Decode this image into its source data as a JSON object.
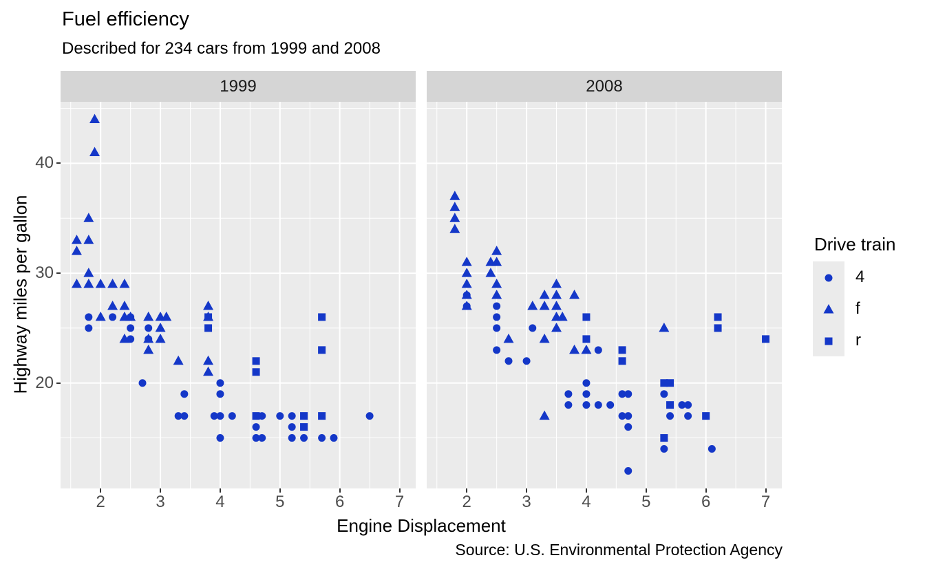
{
  "title": "Fuel efficiency",
  "subtitle": "Described for 234 cars from 1999 and 2008",
  "caption": "Source: U.S. Environmental Protection Agency",
  "x_axis": {
    "label": "Engine Displacement",
    "ticks": [
      2,
      3,
      4,
      5,
      6,
      7
    ],
    "minor": [
      1.5,
      2.5,
      3.5,
      4.5,
      5.5,
      6.5
    ],
    "domain": [
      1.33,
      7.27
    ]
  },
  "y_axis": {
    "label": "Highway miles per gallon",
    "ticks": [
      20,
      30,
      40
    ],
    "minor": [
      15,
      25,
      35,
      45
    ],
    "domain": [
      10.4,
      45.6
    ]
  },
  "legend": {
    "title": "Drive train",
    "items": [
      {
        "label": "4",
        "shape": "circle"
      },
      {
        "label": "f",
        "shape": "triangle"
      },
      {
        "label": "r",
        "shape": "square"
      }
    ]
  },
  "colors": {
    "point": "#1437C8",
    "panel": "#EBEBEB",
    "strip": "#D5D5D5",
    "grid": "#FFFFFF",
    "axis_text": "#4D4D4D",
    "strip_text": "#1A1A1A",
    "tick_mark": "#333333"
  },
  "chart_data": {
    "type": "scatter",
    "xlabel": "Engine Displacement",
    "ylabel": "Highway miles per gallon",
    "xlim": [
      1.33,
      7.27
    ],
    "ylim": [
      10.4,
      45.6
    ],
    "grid": "on",
    "legend_position": "right",
    "facets": [
      {
        "label": "1999",
        "series": [
          {
            "name": "4",
            "shape": "circle",
            "points": [
              [
                1.8,
                25
              ],
              [
                1.8,
                26
              ],
              [
                2.2,
                26
              ],
              [
                2.5,
                24
              ],
              [
                2.5,
                25
              ],
              [
                2.5,
                26
              ],
              [
                2.7,
                20
              ],
              [
                2.8,
                24
              ],
              [
                2.8,
                25
              ],
              [
                3.3,
                17
              ],
              [
                3.4,
                17
              ],
              [
                3.4,
                19
              ],
              [
                3.9,
                17
              ],
              [
                4.0,
                15
              ],
              [
                4.0,
                17
              ],
              [
                4.0,
                19
              ],
              [
                4.0,
                20
              ],
              [
                4.2,
                17
              ],
              [
                4.6,
                15
              ],
              [
                4.6,
                16
              ],
              [
                4.7,
                15
              ],
              [
                4.7,
                17
              ],
              [
                5.0,
                17
              ],
              [
                5.2,
                15
              ],
              [
                5.2,
                16
              ],
              [
                5.2,
                17
              ],
              [
                5.4,
                15
              ],
              [
                5.7,
                15
              ],
              [
                5.9,
                15
              ],
              [
                6.5,
                17
              ]
            ]
          },
          {
            "name": "f",
            "shape": "triangle",
            "points": [
              [
                1.6,
                33
              ],
              [
                1.6,
                32
              ],
              [
                1.6,
                29
              ],
              [
                1.8,
                29
              ],
              [
                1.8,
                30
              ],
              [
                1.8,
                33
              ],
              [
                1.8,
                35
              ],
              [
                1.9,
                44
              ],
              [
                1.9,
                41
              ],
              [
                2.0,
                26
              ],
              [
                2.0,
                29
              ],
              [
                2.2,
                27
              ],
              [
                2.2,
                29
              ],
              [
                2.4,
                24
              ],
              [
                2.4,
                26
              ],
              [
                2.4,
                27
              ],
              [
                2.4,
                29
              ],
              [
                2.5,
                26
              ],
              [
                2.8,
                23
              ],
              [
                2.8,
                24
              ],
              [
                2.8,
                26
              ],
              [
                3.0,
                24
              ],
              [
                3.0,
                25
              ],
              [
                3.0,
                26
              ],
              [
                3.1,
                26
              ],
              [
                3.3,
                22
              ],
              [
                3.8,
                21
              ],
              [
                3.8,
                22
              ],
              [
                3.8,
                26
              ],
              [
                3.8,
                27
              ]
            ]
          },
          {
            "name": "r",
            "shape": "square",
            "points": [
              [
                3.8,
                25
              ],
              [
                3.8,
                26
              ],
              [
                4.6,
                17
              ],
              [
                4.6,
                21
              ],
              [
                4.6,
                22
              ],
              [
                5.4,
                16
              ],
              [
                5.4,
                17
              ],
              [
                5.7,
                17
              ],
              [
                5.7,
                23
              ],
              [
                5.7,
                26
              ]
            ]
          }
        ]
      },
      {
        "label": "2008",
        "series": [
          {
            "name": "4",
            "shape": "circle",
            "points": [
              [
                2.0,
                27
              ],
              [
                2.0,
                28
              ],
              [
                2.5,
                23
              ],
              [
                2.5,
                25
              ],
              [
                2.5,
                26
              ],
              [
                2.5,
                27
              ],
              [
                2.7,
                22
              ],
              [
                3.0,
                22
              ],
              [
                3.1,
                25
              ],
              [
                3.7,
                18
              ],
              [
                3.7,
                19
              ],
              [
                4.0,
                18
              ],
              [
                4.0,
                19
              ],
              [
                4.0,
                20
              ],
              [
                4.2,
                18
              ],
              [
                4.2,
                23
              ],
              [
                4.4,
                18
              ],
              [
                4.6,
                17
              ],
              [
                4.6,
                19
              ],
              [
                4.7,
                12
              ],
              [
                4.7,
                16
              ],
              [
                4.7,
                17
              ],
              [
                4.7,
                19
              ],
              [
                5.3,
                14
              ],
              [
                5.3,
                19
              ],
              [
                5.4,
                17
              ],
              [
                5.6,
                18
              ],
              [
                5.7,
                17
              ],
              [
                5.7,
                18
              ],
              [
                6.1,
                14
              ]
            ]
          },
          {
            "name": "f",
            "shape": "triangle",
            "points": [
              [
                1.8,
                34
              ],
              [
                1.8,
                35
              ],
              [
                1.8,
                36
              ],
              [
                1.8,
                37
              ],
              [
                2.0,
                27
              ],
              [
                2.0,
                28
              ],
              [
                2.0,
                29
              ],
              [
                2.0,
                30
              ],
              [
                2.0,
                31
              ],
              [
                2.4,
                30
              ],
              [
                2.4,
                31
              ],
              [
                2.5,
                28
              ],
              [
                2.5,
                29
              ],
              [
                2.5,
                31
              ],
              [
                2.5,
                32
              ],
              [
                2.7,
                24
              ],
              [
                3.1,
                27
              ],
              [
                3.3,
                17
              ],
              [
                3.3,
                24
              ],
              [
                3.3,
                27
              ],
              [
                3.3,
                28
              ],
              [
                3.5,
                25
              ],
              [
                3.5,
                26
              ],
              [
                3.5,
                27
              ],
              [
                3.5,
                28
              ],
              [
                3.5,
                29
              ],
              [
                3.6,
                26
              ],
              [
                3.8,
                23
              ],
              [
                3.8,
                28
              ],
              [
                4.0,
                23
              ],
              [
                5.3,
                25
              ]
            ]
          },
          {
            "name": "r",
            "shape": "square",
            "points": [
              [
                4.0,
                24
              ],
              [
                4.0,
                26
              ],
              [
                4.6,
                22
              ],
              [
                4.6,
                23
              ],
              [
                5.3,
                15
              ],
              [
                5.3,
                20
              ],
              [
                5.4,
                18
              ],
              [
                5.4,
                20
              ],
              [
                6.0,
                17
              ],
              [
                6.2,
                25
              ],
              [
                6.2,
                26
              ],
              [
                7.0,
                24
              ]
            ]
          }
        ]
      }
    ]
  }
}
